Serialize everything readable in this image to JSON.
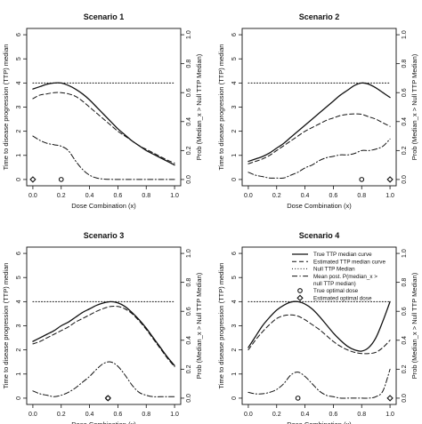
{
  "figure": {
    "legend": [
      {
        "label": "True TTP median curve",
        "style": "solid"
      },
      {
        "label": "Estimated TTP median curve",
        "style": "dashed"
      },
      {
        "label": "Null TTP Median",
        "style": "dotted"
      },
      {
        "label_lines": [
          "Mean post. P(median_x >",
          "null TTP median)"
        ],
        "style": "dashdot"
      },
      {
        "label": "True optimal dose",
        "marker": "circle"
      },
      {
        "label": "Estimated optimal dose",
        "marker": "diamond"
      }
    ]
  },
  "chart_data": [
    {
      "type": "line",
      "title": "Scenario 1",
      "xlabel": "Dose Combination (x)",
      "ylabel_left": "Time to disease progression (TTP) median",
      "ylabel_right": "Prob (Median_x > Null TTP Median)",
      "xlim": [
        0,
        1
      ],
      "ylim_left": [
        0,
        6
      ],
      "ylim_right": [
        0,
        1
      ],
      "x_ticks": [
        "0.0",
        "0.2",
        "0.4",
        "0.6",
        "0.8",
        "1.0"
      ],
      "y_ticks_left": [
        "0",
        "1",
        "2",
        "3",
        "4",
        "5",
        "6"
      ],
      "y_ticks_right": [
        "0.0",
        "0.2",
        "0.4",
        "0.6",
        "0.8",
        "1.0"
      ],
      "x": [
        0,
        0.05,
        0.1,
        0.15,
        0.2,
        0.25,
        0.3,
        0.35,
        0.4,
        0.45,
        0.5,
        0.55,
        0.6,
        0.65,
        0.7,
        0.75,
        0.8,
        0.85,
        0.9,
        0.95,
        1.0
      ],
      "series": [
        {
          "name": "True TTP median curve",
          "axis": "left",
          "style": "solid",
          "values": [
            3.75,
            3.85,
            3.95,
            4.0,
            4.0,
            3.9,
            3.75,
            3.55,
            3.3,
            3.0,
            2.7,
            2.4,
            2.1,
            1.85,
            1.6,
            1.4,
            1.2,
            1.05,
            0.9,
            0.75,
            0.6
          ]
        },
        {
          "name": "Estimated TTP median curve",
          "axis": "left",
          "style": "dashed",
          "values": [
            3.35,
            3.5,
            3.55,
            3.6,
            3.6,
            3.55,
            3.45,
            3.25,
            3.0,
            2.75,
            2.5,
            2.25,
            2.0,
            1.8,
            1.6,
            1.4,
            1.25,
            1.1,
            0.95,
            0.8,
            0.68
          ]
        },
        {
          "name": "Null TTP Median",
          "axis": "left",
          "style": "dotted",
          "values": [
            4.0,
            4.0,
            4.0,
            4.0,
            4.0,
            4.0,
            4.0,
            4.0,
            4.0,
            4.0,
            4.0,
            4.0,
            4.0,
            4.0,
            4.0,
            4.0,
            4.0,
            4.0,
            4.0,
            4.0,
            4.0
          ]
        },
        {
          "name": "Mean post. P(median_x > null TTP median)",
          "axis": "right",
          "style": "dashdot",
          "values": [
            0.3,
            0.27,
            0.25,
            0.24,
            0.23,
            0.2,
            0.13,
            0.07,
            0.03,
            0.01,
            0.003,
            0.001,
            0,
            0,
            0,
            0,
            0,
            0,
            0,
            0,
            0
          ]
        }
      ],
      "markers": [
        {
          "name": "True optimal dose",
          "shape": "circle",
          "x": 0.2,
          "y": 0
        },
        {
          "name": "Estimated optimal dose",
          "shape": "diamond",
          "x": 0.0,
          "y": 0
        }
      ]
    },
    {
      "type": "line",
      "title": "Scenario 2",
      "xlabel": "Dose Combination (x)",
      "ylabel_left": "Time to disease progression (TTP) median",
      "ylabel_right": "Prob (Median_x > Null TTP Median)",
      "xlim": [
        0,
        1
      ],
      "ylim_left": [
        0,
        6
      ],
      "ylim_right": [
        0,
        1
      ],
      "x_ticks": [
        "0.0",
        "0.2",
        "0.4",
        "0.6",
        "0.8",
        "1.0"
      ],
      "y_ticks_left": [
        "0",
        "1",
        "2",
        "3",
        "4",
        "5",
        "6"
      ],
      "y_ticks_right": [
        "0.0",
        "0.2",
        "0.4",
        "0.6",
        "0.8",
        "1.0"
      ],
      "x": [
        0,
        0.05,
        0.1,
        0.15,
        0.2,
        0.25,
        0.3,
        0.35,
        0.4,
        0.45,
        0.5,
        0.55,
        0.6,
        0.65,
        0.7,
        0.75,
        0.8,
        0.85,
        0.9,
        0.95,
        1.0
      ],
      "series": [
        {
          "name": "True TTP median curve",
          "axis": "left",
          "style": "solid",
          "values": [
            0.75,
            0.85,
            0.95,
            1.1,
            1.3,
            1.5,
            1.75,
            2.0,
            2.25,
            2.5,
            2.75,
            3.0,
            3.25,
            3.5,
            3.7,
            3.9,
            4.0,
            3.95,
            3.8,
            3.6,
            3.4
          ]
        },
        {
          "name": "Estimated TTP median curve",
          "axis": "left",
          "style": "dashed",
          "values": [
            0.65,
            0.75,
            0.85,
            1.0,
            1.2,
            1.4,
            1.6,
            1.8,
            2.0,
            2.15,
            2.3,
            2.45,
            2.55,
            2.65,
            2.7,
            2.72,
            2.7,
            2.6,
            2.5,
            2.35,
            2.2
          ]
        },
        {
          "name": "Null TTP Median",
          "axis": "left",
          "style": "dotted",
          "values": [
            4.0,
            4.0,
            4.0,
            4.0,
            4.0,
            4.0,
            4.0,
            4.0,
            4.0,
            4.0,
            4.0,
            4.0,
            4.0,
            4.0,
            4.0,
            4.0,
            4.0,
            4.0,
            4.0,
            4.0,
            4.0
          ]
        },
        {
          "name": "Mean post. P(median_x > null TTP median)",
          "axis": "right",
          "style": "dashdot",
          "values": [
            0.05,
            0.03,
            0.02,
            0.01,
            0.01,
            0.01,
            0.03,
            0.05,
            0.08,
            0.1,
            0.13,
            0.15,
            0.16,
            0.17,
            0.17,
            0.18,
            0.2,
            0.2,
            0.21,
            0.23,
            0.28
          ]
        }
      ],
      "markers": [
        {
          "name": "True optimal dose",
          "shape": "circle",
          "x": 0.8,
          "y": 0
        },
        {
          "name": "Estimated optimal dose",
          "shape": "diamond",
          "x": 1.0,
          "y": 0
        }
      ]
    },
    {
      "type": "line",
      "title": "Scenario 3",
      "xlabel": "Dose Combination (x)",
      "ylabel_left": "Time to disease progression (TTP) median",
      "ylabel_right": "Prob (Median_x > Null TTP Median)",
      "xlim": [
        0,
        1
      ],
      "ylim_left": [
        0,
        6
      ],
      "ylim_right": [
        0,
        1
      ],
      "x_ticks": [
        "0.0",
        "0.2",
        "0.4",
        "0.6",
        "0.8",
        "1.0"
      ],
      "y_ticks_left": [
        "0",
        "1",
        "2",
        "3",
        "4",
        "5",
        "6"
      ],
      "y_ticks_right": [
        "0.0",
        "0.2",
        "0.4",
        "0.6",
        "0.8",
        "1.0"
      ],
      "x": [
        0,
        0.05,
        0.1,
        0.15,
        0.2,
        0.25,
        0.3,
        0.35,
        0.4,
        0.45,
        0.5,
        0.55,
        0.6,
        0.65,
        0.7,
        0.75,
        0.8,
        0.85,
        0.9,
        0.95,
        1.0
      ],
      "series": [
        {
          "name": "True TTP median curve",
          "axis": "left",
          "style": "solid",
          "values": [
            2.35,
            2.5,
            2.65,
            2.8,
            3.0,
            3.15,
            3.35,
            3.55,
            3.7,
            3.85,
            3.95,
            4.0,
            3.95,
            3.8,
            3.55,
            3.25,
            2.9,
            2.5,
            2.1,
            1.7,
            1.35
          ]
        },
        {
          "name": "Estimated TTP median curve",
          "axis": "left",
          "style": "dashed",
          "values": [
            2.25,
            2.35,
            2.5,
            2.65,
            2.8,
            2.95,
            3.15,
            3.3,
            3.45,
            3.6,
            3.72,
            3.8,
            3.8,
            3.7,
            3.5,
            3.2,
            2.85,
            2.45,
            2.05,
            1.65,
            1.3
          ]
        },
        {
          "name": "Null TTP Median",
          "axis": "left",
          "style": "dotted",
          "values": [
            4.0,
            4.0,
            4.0,
            4.0,
            4.0,
            4.0,
            4.0,
            4.0,
            4.0,
            4.0,
            4.0,
            4.0,
            4.0,
            4.0,
            4.0,
            4.0,
            4.0,
            4.0,
            4.0,
            4.0,
            4.0
          ]
        },
        {
          "name": "Mean post. P(median_x > null TTP median)",
          "axis": "right",
          "style": "dashdot",
          "values": [
            0.05,
            0.03,
            0.02,
            0.01,
            0.02,
            0.04,
            0.07,
            0.11,
            0.15,
            0.2,
            0.24,
            0.25,
            0.22,
            0.16,
            0.09,
            0.04,
            0.02,
            0.01,
            0.01,
            0.01,
            0.01
          ]
        }
      ],
      "markers": [
        {
          "name": "True optimal dose",
          "shape": "circle",
          "x": 0.53,
          "y": 0
        },
        {
          "name": "Estimated optimal dose",
          "shape": "diamond",
          "x": 0.53,
          "y": 0
        }
      ]
    },
    {
      "type": "line",
      "title": "Scenario 4",
      "xlabel": "Dose Combination (x)",
      "ylabel_left": "Time to disease progression (TTP) median",
      "ylabel_right": "Prob (Median_x > Null TTP Median)",
      "xlim": [
        0,
        1
      ],
      "ylim_left": [
        0,
        6
      ],
      "ylim_right": [
        0,
        1
      ],
      "x_ticks": [
        "0.0",
        "0.2",
        "0.4",
        "0.6",
        "0.8",
        "1.0"
      ],
      "y_ticks_left": [
        "0",
        "1",
        "2",
        "3",
        "4",
        "5",
        "6"
      ],
      "y_ticks_right": [
        "0.0",
        "0.2",
        "0.4",
        "0.6",
        "0.8",
        "1.0"
      ],
      "legend_position": "top-right",
      "x": [
        0,
        0.05,
        0.1,
        0.15,
        0.2,
        0.25,
        0.3,
        0.35,
        0.4,
        0.45,
        0.5,
        0.55,
        0.6,
        0.65,
        0.7,
        0.75,
        0.8,
        0.85,
        0.9,
        0.95,
        1.0
      ],
      "series": [
        {
          "name": "True TTP median curve",
          "axis": "left",
          "style": "solid",
          "values": [
            2.1,
            2.55,
            3.0,
            3.35,
            3.65,
            3.85,
            3.98,
            4.0,
            3.9,
            3.7,
            3.4,
            3.05,
            2.7,
            2.4,
            2.15,
            2.0,
            1.95,
            2.1,
            2.5,
            3.2,
            4.0
          ]
        },
        {
          "name": "Estimated TTP median curve",
          "axis": "left",
          "style": "dashed",
          "values": [
            2.0,
            2.4,
            2.75,
            3.05,
            3.3,
            3.42,
            3.45,
            3.4,
            3.25,
            3.05,
            2.85,
            2.6,
            2.35,
            2.15,
            2.0,
            1.9,
            1.85,
            1.85,
            1.9,
            2.1,
            2.4
          ]
        },
        {
          "name": "Null TTP Median",
          "axis": "left",
          "style": "dotted",
          "values": [
            4.0,
            4.0,
            4.0,
            4.0,
            4.0,
            4.0,
            4.0,
            4.0,
            4.0,
            4.0,
            4.0,
            4.0,
            4.0,
            4.0,
            4.0,
            4.0,
            4.0,
            4.0,
            4.0,
            4.0,
            4.0
          ]
        },
        {
          "name": "Mean post. P(median_x > null TTP median)",
          "axis": "right",
          "style": "dashdot",
          "values": [
            0.04,
            0.03,
            0.03,
            0.04,
            0.06,
            0.1,
            0.16,
            0.18,
            0.15,
            0.1,
            0.05,
            0.02,
            0.01,
            0,
            0,
            0,
            0,
            0,
            0.01,
            0.05,
            0.2
          ]
        }
      ],
      "markers": [
        {
          "name": "True optimal dose",
          "shape": "circle",
          "x": 0.35,
          "y": 0
        },
        {
          "name": "Estimated optimal dose",
          "shape": "diamond",
          "x": 1.0,
          "y": 0
        }
      ]
    }
  ]
}
